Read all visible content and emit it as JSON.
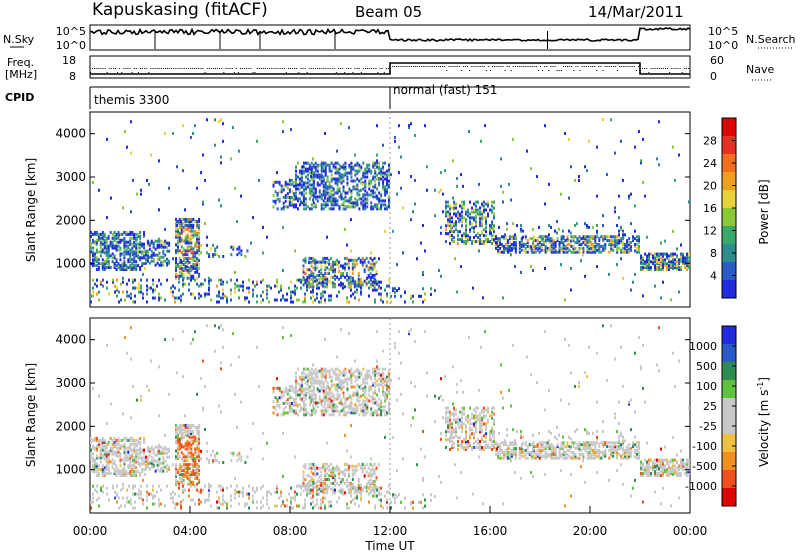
{
  "header": {
    "title": "Kapuskasing (fitACF)",
    "beam": "Beam 05",
    "date": "14/Mar/2011"
  },
  "noise_panel": {
    "left_label": "N.Sky",
    "left_ticks": [
      "10^5",
      "10^0"
    ],
    "right_label": "N.Search",
    "right_ticks": [
      "10^5",
      "10^0"
    ]
  },
  "freq_panel": {
    "left_label_top": "Freq.",
    "left_label_bottom": "[MHz]",
    "left_ticks": [
      "18",
      "8"
    ],
    "right_label": "Nave",
    "right_ticks": [
      "60",
      "0"
    ]
  },
  "cpid_panel": {
    "label": "CPID",
    "segments": [
      "themis 3300",
      "normal (fast) 151"
    ]
  },
  "colors": {
    "power": [
      "#1f2bdc",
      "#2a5ac8",
      "#2e8c8c",
      "#3aa86a",
      "#8ac83a",
      "#e8d23a",
      "#f0a020",
      "#f07020",
      "#e83020",
      "#e00000"
    ],
    "velocity": [
      "#e00000",
      "#f05020",
      "#f09020",
      "#f0c040",
      "#c8c8c8",
      "#c8c8c8",
      "#60c040",
      "#2e8c50",
      "#2a5ac8",
      "#1f2bdc"
    ]
  },
  "chart_data": [
    {
      "type": "heatmap",
      "title": "",
      "ylabel": "Slant Range [km]",
      "xlabel": "",
      "y_ticks": [
        "1000",
        "2000",
        "3000",
        "4000"
      ],
      "colorbar_label": "Power [dB]",
      "colorbar_ticks": [
        "4",
        "8",
        "12",
        "16",
        "20",
        "24",
        "28"
      ],
      "ylim": [
        0,
        4500
      ]
    },
    {
      "type": "heatmap",
      "title": "",
      "ylabel": "Slant Range [km]",
      "xlabel": "Time UT",
      "x_ticks": [
        "00:00",
        "04:00",
        "08:00",
        "12:00",
        "16:00",
        "20:00",
        "00:00"
      ],
      "y_ticks": [
        "1000",
        "2000",
        "3000",
        "4000"
      ],
      "colorbar_label": "Velocity [m s",
      "colorbar_label_sup": "-1",
      "colorbar_label_end": "]",
      "colorbar_ticks": [
        "1000",
        "500",
        "100",
        "25",
        "-25",
        "-100",
        "-500",
        "-1000"
      ],
      "ylim": [
        0,
        4500
      ]
    }
  ]
}
